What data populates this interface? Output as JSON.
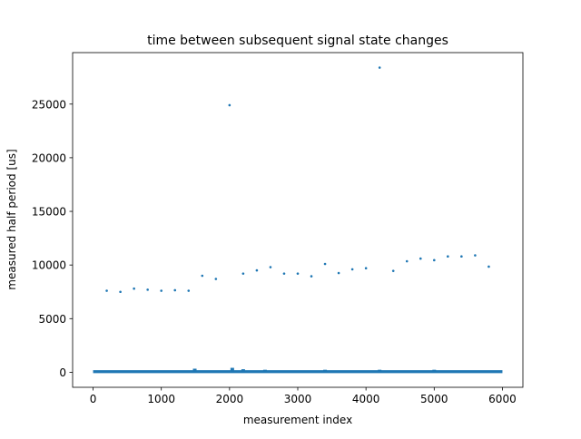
{
  "chart_data": {
    "type": "scatter",
    "title": "time between subsequent signal state changes",
    "xlabel": "measurement index",
    "ylabel": "measured half period [us]",
    "xlim": [
      -300,
      6300
    ],
    "ylim": [
      -1400,
      29800
    ],
    "xticks": [
      0,
      1000,
      2000,
      3000,
      4000,
      5000,
      6000
    ],
    "xtick_labels": [
      "0",
      "1000",
      "2000",
      "3000",
      "4000",
      "5000",
      "6000"
    ],
    "yticks": [
      0,
      5000,
      10000,
      15000,
      20000,
      25000
    ],
    "ytick_labels": [
      "0",
      "5000",
      "10000",
      "15000",
      "20000",
      "25000"
    ],
    "grid": false,
    "legend": false,
    "marker_color": "#1f77b4",
    "baseline": {
      "x_start": 0,
      "x_end": 6000,
      "y": 60,
      "description_values": "dense band of points with values near 0 to ~300 across all indices"
    },
    "bumps": [
      {
        "x": 1490,
        "y": 250
      },
      {
        "x": 2040,
        "y": 330
      },
      {
        "x": 2200,
        "y": 200
      },
      {
        "x": 2520,
        "y": 150
      },
      {
        "x": 3400,
        "y": 150
      },
      {
        "x": 4200,
        "y": 150
      },
      {
        "x": 5000,
        "y": 150
      }
    ],
    "points": [
      {
        "x": 200,
        "y": 7600
      },
      {
        "x": 400,
        "y": 7500
      },
      {
        "x": 600,
        "y": 7800
      },
      {
        "x": 800,
        "y": 7700
      },
      {
        "x": 1000,
        "y": 7600
      },
      {
        "x": 1200,
        "y": 7650
      },
      {
        "x": 1400,
        "y": 7600
      },
      {
        "x": 1600,
        "y": 9000
      },
      {
        "x": 1800,
        "y": 8700
      },
      {
        "x": 2000,
        "y": 24900
      },
      {
        "x": 2200,
        "y": 9200
      },
      {
        "x": 2400,
        "y": 9500
      },
      {
        "x": 2600,
        "y": 9800
      },
      {
        "x": 2800,
        "y": 9200
      },
      {
        "x": 3000,
        "y": 9200
      },
      {
        "x": 3200,
        "y": 8950
      },
      {
        "x": 3400,
        "y": 10100
      },
      {
        "x": 3600,
        "y": 9250
      },
      {
        "x": 3800,
        "y": 9600
      },
      {
        "x": 4000,
        "y": 9700
      },
      {
        "x": 4200,
        "y": 28400
      },
      {
        "x": 4400,
        "y": 9450
      },
      {
        "x": 4600,
        "y": 10350
      },
      {
        "x": 4800,
        "y": 10600
      },
      {
        "x": 5000,
        "y": 10450
      },
      {
        "x": 5200,
        "y": 10800
      },
      {
        "x": 5400,
        "y": 10800
      },
      {
        "x": 5600,
        "y": 10900
      },
      {
        "x": 5800,
        "y": 9850
      }
    ]
  }
}
